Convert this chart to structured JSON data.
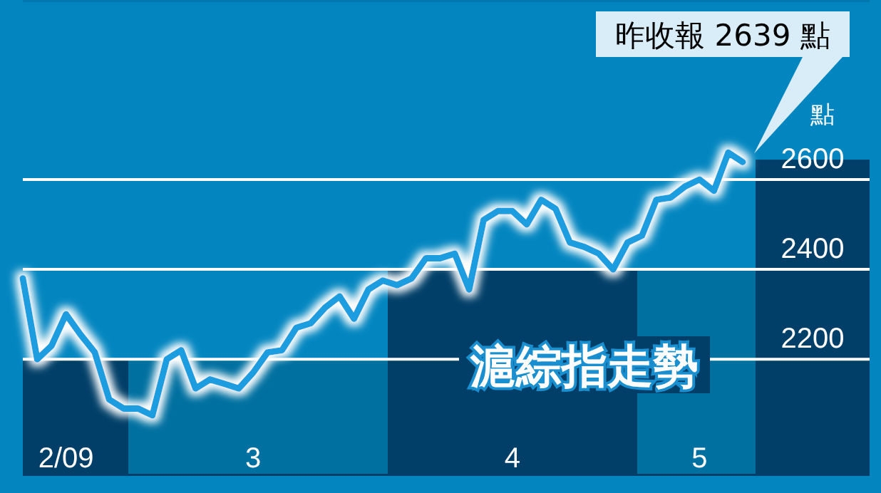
{
  "chart_data": {
    "type": "line",
    "title": "滬綜指走勢",
    "ylabel": "點",
    "categories": [
      null,
      null,
      null,
      "2/09",
      null,
      null,
      null,
      null,
      null,
      null,
      null,
      null,
      null,
      null,
      null,
      null,
      "3",
      null,
      null,
      null,
      null,
      null,
      null,
      null,
      null,
      null,
      null,
      null,
      null,
      null,
      null,
      null,
      null,
      null,
      "4",
      null,
      null,
      null,
      null,
      null,
      null,
      null,
      null,
      null,
      null,
      null,
      null,
      "5",
      null,
      null,
      null
    ],
    "values": [
      2380,
      2200,
      2230,
      2300,
      2255,
      2215,
      2110,
      2090,
      2090,
      2075,
      2200,
      2220,
      2135,
      2155,
      2145,
      2135,
      2170,
      2215,
      2220,
      2270,
      2280,
      2315,
      2340,
      2290,
      2355,
      2375,
      2365,
      2380,
      2425,
      2425,
      2435,
      2355,
      2510,
      2530,
      2530,
      2500,
      2555,
      2535,
      2460,
      2450,
      2435,
      2400,
      2460,
      2475,
      2555,
      2560,
      2585,
      2600,
      2575,
      2660,
      2639
    ],
    "color": "#1a9de0",
    "ylim": [
      1940,
      3000
    ],
    "yticks": [
      2200,
      2400,
      2600
    ],
    "grid": "y",
    "annotations": [
      "昨收報 2639 點"
    ]
  }
}
